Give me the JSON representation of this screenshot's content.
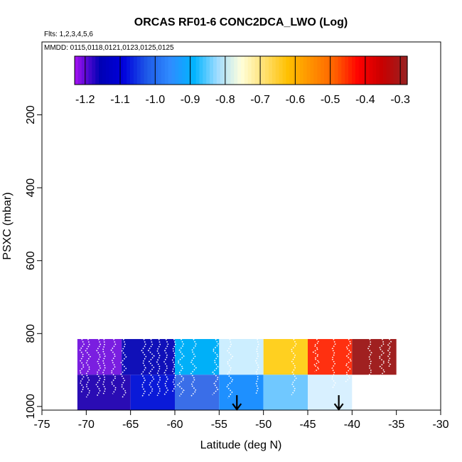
{
  "chart_data": {
    "type": "heatmap",
    "title": "ORCAS RF01-6 CONC2DCA_LWO (Log)",
    "subtitle_flights": "Flts: 1,2,3,4,5,6",
    "subtitle_dates": "MMDD: 0115,0118,0121,0123,0125,0125",
    "xlabel": "Latitude (deg N)",
    "ylabel": "PSXC (mbar)",
    "xlim": [
      -75,
      -30
    ],
    "ylim": [
      1010,
      0
    ],
    "y_reversed": true,
    "x_ticks": [
      "-75",
      "-70",
      "-65",
      "-60",
      "-55",
      "-50",
      "-45",
      "-40",
      "-35",
      "-30"
    ],
    "y_ticks": [
      "200",
      "400",
      "600",
      "800",
      "1000"
    ],
    "colorbar": {
      "ticks": [
        "-1.2",
        "-1.1",
        "-1.0",
        "-0.9",
        "-0.8",
        "-0.7",
        "-0.6",
        "-0.5",
        "-0.4",
        "-0.3"
      ],
      "range": [
        -1.23,
        -0.28
      ],
      "stops": [
        "#9b10ee",
        "#0000b4",
        "#0000dc",
        "#1e5ae8",
        "#2f8cff",
        "#00b4ff",
        "#a0dcff",
        "#ffffdc",
        "#ffe070",
        "#ffc000",
        "#ff9000",
        "#ff6000",
        "#ff0000",
        "#c80000",
        "#9a2020"
      ]
    },
    "cells": [
      {
        "lat": [
          -71,
          -66
        ],
        "p": [
          815,
          913
        ],
        "value": -1.22
      },
      {
        "lat": [
          -66,
          -60
        ],
        "p": [
          815,
          913
        ],
        "value": -1.09
      },
      {
        "lat": [
          -60,
          -55
        ],
        "p": [
          815,
          913
        ],
        "value": -0.86
      },
      {
        "lat": [
          -55,
          -50
        ],
        "p": [
          815,
          913
        ],
        "value": -0.74
      },
      {
        "lat": [
          -50,
          -45
        ],
        "p": [
          815,
          913
        ],
        "value": -0.57
      },
      {
        "lat": [
          -45,
          -40
        ],
        "p": [
          815,
          913
        ],
        "value": -0.41
      },
      {
        "lat": [
          -40,
          -35
        ],
        "p": [
          815,
          913
        ],
        "value": -0.3
      },
      {
        "lat": [
          -71,
          -65
        ],
        "p": [
          913,
          1010
        ],
        "value": -1.15
      },
      {
        "lat": [
          -65,
          -60
        ],
        "p": [
          913,
          1010
        ],
        "value": -1.1
      },
      {
        "lat": [
          -60,
          -55
        ],
        "p": [
          913,
          1010
        ],
        "value": -0.93
      },
      {
        "lat": [
          -55,
          -50
        ],
        "p": [
          913,
          1010
        ],
        "value": -0.83
      },
      {
        "lat": [
          -50,
          -45
        ],
        "p": [
          913,
          1010
        ],
        "value": -0.87
      },
      {
        "lat": [
          -45,
          -40
        ],
        "p": [
          913,
          1010
        ],
        "value": -0.77
      }
    ],
    "cell_colors": [
      "#7a1ee0",
      "#1010b8",
      "#00b0f8",
      "#cceeff",
      "#ffd020",
      "#ff3010",
      "#a02020",
      "#2a0cb4",
      "#0a1ad8",
      "#3a6ee8",
      "#1e90ff",
      "#70c8ff",
      "#d8f0ff"
    ],
    "flight_tracks_lat": [
      -70.5,
      -69.8,
      -68.6,
      -68.0,
      -66.9,
      -65.8,
      -63.5,
      -62.7,
      -61.8,
      -61.0,
      -60.1,
      -59.3,
      -57.9,
      -55.4,
      -53.8,
      -50.7,
      -46.6,
      -44.0,
      -42.1,
      -40.4,
      -38.0,
      -36.6,
      -35.8
    ],
    "track_style": "white-dotted",
    "arrows_lat": [
      -53.0,
      -41.5
    ]
  }
}
